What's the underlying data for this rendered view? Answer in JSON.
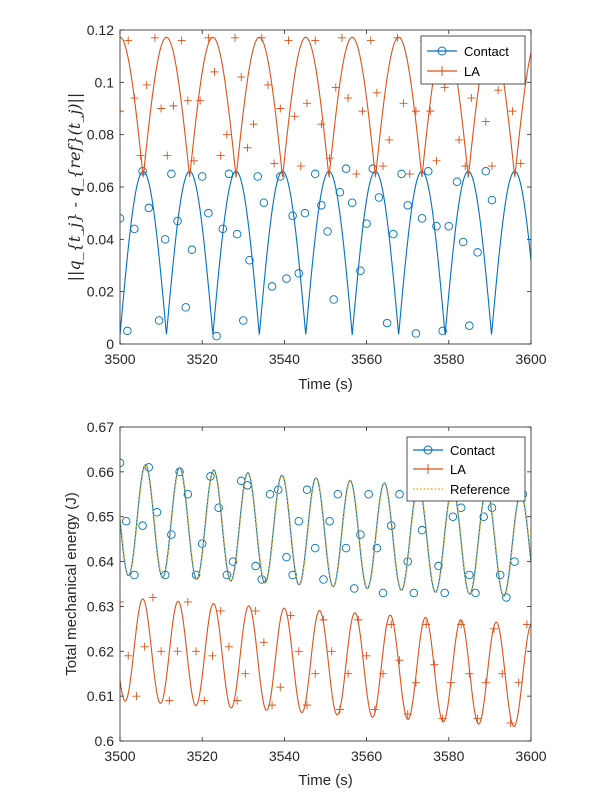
{
  "chart_data": [
    {
      "type": "line",
      "title": "",
      "xlabel": "Time (s)",
      "ylabel": "||q_{t_j} - q_{ref}(t_j)||",
      "xlim": [
        3500,
        3600
      ],
      "ylim": [
        0,
        0.12
      ],
      "xticks": [
        3500,
        3520,
        3540,
        3560,
        3580,
        3600
      ],
      "xtick_labels": [
        "3500",
        "3520",
        "3540",
        "3560",
        "3580",
        "3600"
      ],
      "yticks": [
        0,
        0.02,
        0.04,
        0.06,
        0.08,
        0.1,
        0.12
      ],
      "ytick_labels": [
        "0",
        "0.02",
        "0.04",
        "0.06",
        "0.08",
        "0.1",
        "0.12"
      ],
      "legend": {
        "position": "top-right",
        "entries": [
          "Contact",
          "LA"
        ]
      },
      "series": [
        {
          "name": "Contact",
          "color": "#0072BD",
          "marker": "circle",
          "waveform": {
            "kind": "abs-sine",
            "amplitude": 0.0625,
            "offset": 0.0035,
            "period": 11.3,
            "phase": 3500.0
          },
          "marker_points": [
            [
              3500.0,
              0.048
            ],
            [
              3501.8,
              0.005
            ],
            [
              3503.5,
              0.044
            ],
            [
              3505.5,
              0.066
            ],
            [
              3507.0,
              0.052
            ],
            [
              3509.5,
              0.009
            ],
            [
              3511.0,
              0.04
            ],
            [
              3512.5,
              0.065
            ],
            [
              3514.0,
              0.047
            ],
            [
              3516.0,
              0.014
            ],
            [
              3517.5,
              0.036
            ],
            [
              3520.0,
              0.064
            ],
            [
              3521.5,
              0.05
            ],
            [
              3523.5,
              0.003
            ],
            [
              3525.0,
              0.044
            ],
            [
              3526.5,
              0.065
            ],
            [
              3528.5,
              0.042
            ],
            [
              3530.0,
              0.009
            ],
            [
              3531.5,
              0.032
            ],
            [
              3533.5,
              0.064
            ],
            [
              3535.0,
              0.054
            ],
            [
              3537.0,
              0.022
            ],
            [
              3539.0,
              0.064
            ],
            [
              3540.5,
              0.025
            ],
            [
              3542.0,
              0.049
            ],
            [
              3543.5,
              0.027
            ],
            [
              3545.0,
              0.05
            ],
            [
              3547.5,
              0.065
            ],
            [
              3549.0,
              0.053
            ],
            [
              3550.5,
              0.043
            ],
            [
              3552.0,
              0.017
            ],
            [
              3553.5,
              0.058
            ],
            [
              3555.0,
              0.067
            ],
            [
              3556.5,
              0.054
            ],
            [
              3558.5,
              0.028
            ],
            [
              3560.0,
              0.046
            ],
            [
              3561.5,
              0.067
            ],
            [
              3563.0,
              0.056
            ],
            [
              3565.0,
              0.008
            ],
            [
              3566.5,
              0.042
            ],
            [
              3568.5,
              0.065
            ],
            [
              3570.0,
              0.053
            ],
            [
              3572.0,
              0.004
            ],
            [
              3573.5,
              0.048
            ],
            [
              3575.0,
              0.066
            ],
            [
              3577.0,
              0.045
            ],
            [
              3578.5,
              0.005
            ],
            [
              3580.0,
              0.045
            ],
            [
              3582.0,
              0.062
            ],
            [
              3583.5,
              0.039
            ],
            [
              3585.0,
              0.007
            ],
            [
              3587.0,
              0.035
            ],
            [
              3589.0,
              0.066
            ],
            [
              3590.5,
              0.055
            ]
          ]
        },
        {
          "name": "LA",
          "color": "#D95319",
          "marker": "plus",
          "waveform": {
            "kind": "abs-sine",
            "amplitude": 0.0535,
            "offset": 0.0637,
            "period": 11.3,
            "phase": 3494.35
          },
          "marker_points": [
            [
              3500.0,
              0.089
            ],
            [
              3502.0,
              0.116
            ],
            [
              3503.5,
              0.094
            ],
            [
              3505.0,
              0.072
            ],
            [
              3506.5,
              0.099
            ],
            [
              3508.5,
              0.117
            ],
            [
              3510.0,
              0.09
            ],
            [
              3511.5,
              0.072
            ],
            [
              3513.0,
              0.091
            ],
            [
              3515.0,
              0.116
            ],
            [
              3516.5,
              0.093
            ],
            [
              3518.0,
              0.07
            ],
            [
              3519.5,
              0.093
            ],
            [
              3521.5,
              0.117
            ],
            [
              3523.0,
              0.104
            ],
            [
              3524.5,
              0.072
            ],
            [
              3526.0,
              0.08
            ],
            [
              3528.0,
              0.117
            ],
            [
              3529.5,
              0.102
            ],
            [
              3531.0,
              0.075
            ],
            [
              3532.5,
              0.084
            ],
            [
              3534.5,
              0.117
            ],
            [
              3536.0,
              0.099
            ],
            [
              3537.5,
              0.069
            ],
            [
              3539.0,
              0.09
            ],
            [
              3541.0,
              0.116
            ],
            [
              3542.5,
              0.087
            ],
            [
              3544.0,
              0.068
            ],
            [
              3545.5,
              0.092
            ],
            [
              3547.5,
              0.116
            ],
            [
              3549.0,
              0.084
            ],
            [
              3551.0,
              0.071
            ],
            [
              3552.5,
              0.098
            ],
            [
              3554.0,
              0.117
            ],
            [
              3555.5,
              0.094
            ],
            [
              3557.5,
              0.065
            ],
            [
              3559.0,
              0.089
            ],
            [
              3561.0,
              0.116
            ],
            [
              3562.5,
              0.096
            ],
            [
              3564.0,
              0.068
            ],
            [
              3565.5,
              0.078
            ],
            [
              3567.5,
              0.117
            ],
            [
              3569.0,
              0.092
            ],
            [
              3570.5,
              0.065
            ],
            [
              3572.0,
              0.089
            ],
            [
              3574.0,
              0.116
            ],
            [
              3575.5,
              0.089
            ],
            [
              3577.0,
              0.07
            ],
            [
              3579.0,
              0.098
            ],
            [
              3580.5,
              0.115
            ],
            [
              3582.5,
              0.078
            ],
            [
              3584.0,
              0.068
            ],
            [
              3585.5,
              0.094
            ],
            [
              3587.5,
              0.115
            ],
            [
              3589.0,
              0.085
            ],
            [
              3590.5,
              0.068
            ],
            [
              3592.0,
              0.097
            ],
            [
              3594.0,
              0.116
            ],
            [
              3595.5,
              0.089
            ],
            [
              3597.5,
              0.069
            ]
          ]
        }
      ]
    },
    {
      "type": "line",
      "title": "",
      "xlabel": "Time (s)",
      "ylabel": "Total mechanical energy (J)",
      "xlim": [
        3500,
        3600
      ],
      "ylim": [
        0.6,
        0.67
      ],
      "xticks": [
        3500,
        3520,
        3540,
        3560,
        3580,
        3600
      ],
      "xtick_labels": [
        "3500",
        "3520",
        "3540",
        "3560",
        "3580",
        "3600"
      ],
      "yticks": [
        0.6,
        0.61,
        0.62,
        0.63,
        0.64,
        0.65,
        0.66,
        0.67
      ],
      "ytick_labels": [
        "0.6",
        "0.61",
        "0.62",
        "0.63",
        "0.64",
        "0.65",
        "0.66",
        "0.67"
      ],
      "legend": {
        "position": "top-right",
        "entries": [
          "Contact",
          "LA",
          "Reference"
        ]
      },
      "series": [
        {
          "name": "Contact",
          "color": "#0072BD",
          "marker": "circle",
          "waveform": {
            "kind": "sine-decay",
            "mean_start": 0.6495,
            "mean_end": 0.6435,
            "amp_start": 0.0125,
            "amp_end": 0.0115,
            "period": 8.3,
            "phase": 3497.9
          },
          "marker_points": [
            [
              3500.0,
              0.662
            ],
            [
              3501.5,
              0.649
            ],
            [
              3503.5,
              0.637
            ],
            [
              3505.5,
              0.648
            ],
            [
              3507.0,
              0.661
            ],
            [
              3509.0,
              0.651
            ],
            [
              3511.0,
              0.637
            ],
            [
              3512.5,
              0.646
            ],
            [
              3514.5,
              0.66
            ],
            [
              3516.5,
              0.655
            ],
            [
              3518.5,
              0.637
            ],
            [
              3520.0,
              0.644
            ],
            [
              3522.0,
              0.659
            ],
            [
              3524.0,
              0.652
            ],
            [
              3526.0,
              0.637
            ],
            [
              3527.5,
              0.64
            ],
            [
              3529.5,
              0.658
            ],
            [
              3531.0,
              0.657
            ],
            [
              3533.0,
              0.639
            ],
            [
              3534.5,
              0.636
            ],
            [
              3536.5,
              0.655
            ],
            [
              3538.5,
              0.656
            ],
            [
              3540.5,
              0.641
            ],
            [
              3542.0,
              0.637
            ],
            [
              3543.5,
              0.649
            ],
            [
              3545.5,
              0.656
            ],
            [
              3547.5,
              0.643
            ],
            [
              3549.5,
              0.636
            ],
            [
              3551.0,
              0.649
            ],
            [
              3553.0,
              0.655
            ],
            [
              3555.0,
              0.643
            ],
            [
              3557.0,
              0.634
            ],
            [
              3558.5,
              0.646
            ],
            [
              3560.5,
              0.655
            ],
            [
              3562.5,
              0.643
            ],
            [
              3564.0,
              0.633
            ],
            [
              3566.0,
              0.648
            ],
            [
              3568.0,
              0.655
            ],
            [
              3570.0,
              0.64
            ],
            [
              3571.5,
              0.633
            ],
            [
              3573.5,
              0.647
            ],
            [
              3575.5,
              0.655
            ],
            [
              3577.5,
              0.639
            ],
            [
              3579.0,
              0.633
            ],
            [
              3581.0,
              0.65
            ],
            [
              3583.0,
              0.652
            ],
            [
              3585.0,
              0.637
            ],
            [
              3586.5,
              0.633
            ],
            [
              3588.5,
              0.65
            ],
            [
              3590.5,
              0.652
            ],
            [
              3592.5,
              0.637
            ],
            [
              3594.0,
              0.632
            ],
            [
              3596.0,
              0.64
            ],
            [
              3598.0,
              0.655
            ]
          ]
        },
        {
          "name": "LA",
          "color": "#D95319",
          "marker": "plus",
          "waveform": {
            "kind": "sine-decay",
            "mean_start": 0.6205,
            "mean_end": 0.6145,
            "amp_start": 0.0115,
            "amp_end": 0.0115,
            "period": 8.6,
            "phase": 3505.55
          },
          "marker_points": [
            [
              3500.0,
              0.631
            ],
            [
              3502.0,
              0.619
            ],
            [
              3504.0,
              0.61
            ],
            [
              3506.0,
              0.621
            ],
            [
              3508.0,
              0.632
            ],
            [
              3510.0,
              0.62
            ],
            [
              3512.0,
              0.609
            ],
            [
              3514.0,
              0.62
            ],
            [
              3516.5,
              0.631
            ],
            [
              3518.5,
              0.62
            ],
            [
              3520.5,
              0.609
            ],
            [
              3522.5,
              0.619
            ],
            [
              3524.5,
              0.629
            ],
            [
              3526.5,
              0.621
            ],
            [
              3528.5,
              0.609
            ],
            [
              3530.5,
              0.615
            ],
            [
              3533.0,
              0.629
            ],
            [
              3535.0,
              0.622
            ],
            [
              3537.0,
              0.608
            ],
            [
              3539.0,
              0.612
            ],
            [
              3541.5,
              0.628
            ],
            [
              3543.5,
              0.62
            ],
            [
              3545.5,
              0.608
            ],
            [
              3547.5,
              0.615
            ],
            [
              3549.5,
              0.627
            ],
            [
              3551.5,
              0.62
            ],
            [
              3553.5,
              0.607
            ],
            [
              3555.5,
              0.615
            ],
            [
              3558.0,
              0.627
            ],
            [
              3560.0,
              0.619
            ],
            [
              3562.0,
              0.607
            ],
            [
              3564.0,
              0.615
            ],
            [
              3566.0,
              0.626
            ],
            [
              3568.0,
              0.618
            ],
            [
              3570.0,
              0.606
            ],
            [
              3572.0,
              0.613
            ],
            [
              3574.5,
              0.626
            ],
            [
              3576.5,
              0.617
            ],
            [
              3578.5,
              0.605
            ],
            [
              3580.5,
              0.613
            ],
            [
              3583.0,
              0.626
            ],
            [
              3585.0,
              0.615
            ],
            [
              3587.0,
              0.605
            ],
            [
              3589.0,
              0.613
            ],
            [
              3591.0,
              0.625
            ],
            [
              3593.0,
              0.615
            ],
            [
              3595.0,
              0.604
            ],
            [
              3597.0,
              0.613
            ],
            [
              3599.0,
              0.626
            ]
          ]
        },
        {
          "name": "Reference",
          "color": "#EDB120",
          "marker": "none",
          "line_style": "dotted",
          "waveform": {
            "kind": "sine-decay",
            "mean_start": 0.6495,
            "mean_end": 0.6435,
            "amp_start": 0.0125,
            "amp_end": 0.0115,
            "period": 8.3,
            "phase": 3498.0
          }
        }
      ]
    }
  ]
}
